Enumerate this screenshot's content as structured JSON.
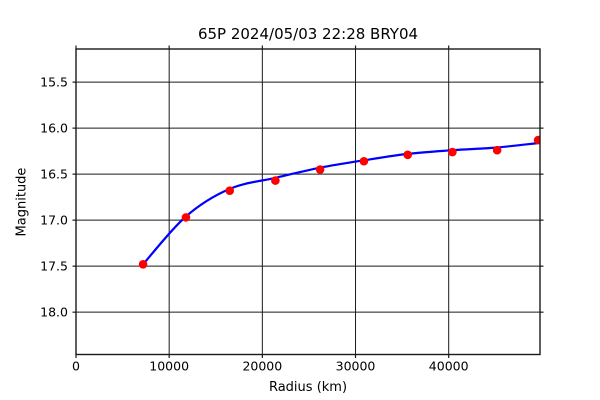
{
  "chart_data": {
    "type": "line",
    "title": "65P 2024/05/03 22:28 BRY04",
    "xlabel": "Radius (km)",
    "ylabel": "Magnitude",
    "xlim": [
      0,
      49800
    ],
    "ylim": [
      18.46,
      15.14
    ],
    "y_axis_inverted": true,
    "grid": true,
    "legend": "none",
    "x_ticks": {
      "values": [
        0,
        10000,
        20000,
        30000,
        40000
      ],
      "labels": [
        "0",
        "10000",
        "20000",
        "30000",
        "40000"
      ]
    },
    "y_ticks": {
      "values": [
        15.5,
        16.0,
        16.5,
        17.0,
        17.5,
        18.0
      ],
      "labels": [
        "15.5",
        "16.0",
        "16.5",
        "17.0",
        "17.5",
        "18.0"
      ]
    },
    "series": [
      {
        "name": "measured-points",
        "type": "scatter",
        "color": "#ff0000",
        "marker": "circle",
        "x": [
          7200,
          11800,
          16500,
          21400,
          26200,
          30900,
          35600,
          40400,
          45200,
          49600
        ],
        "y": [
          17.48,
          16.97,
          16.68,
          16.57,
          16.45,
          16.36,
          16.29,
          16.26,
          16.24,
          16.13
        ]
      },
      {
        "name": "fit-curve",
        "type": "line",
        "color": "#0000ff",
        "x": [
          7200,
          11800,
          16500,
          21400,
          26200,
          30900,
          35600,
          40400,
          45200,
          49800
        ],
        "y": [
          17.48,
          16.96,
          16.66,
          16.54,
          16.43,
          16.35,
          16.28,
          16.24,
          16.21,
          16.16
        ]
      }
    ],
    "colors": {
      "background": "#ffffff",
      "grid": "#1a1a1a",
      "spine": "#1a1a1a",
      "line": "#0000ff",
      "marker": "#ff0000",
      "text": "#000000"
    }
  }
}
